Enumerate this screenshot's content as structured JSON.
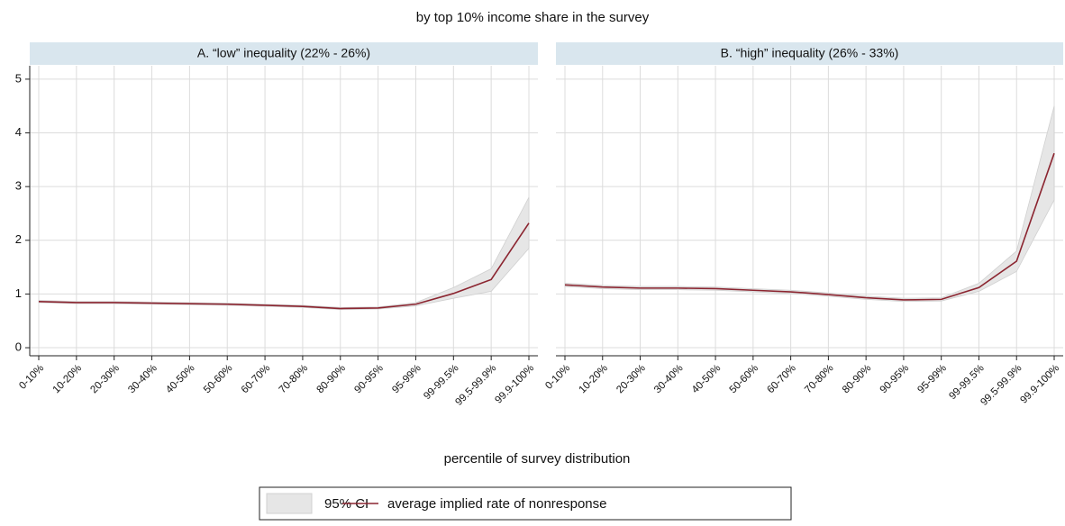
{
  "figure": {
    "title": "by top 10% income share in the survey",
    "x_label": "percentile of survey distribution"
  },
  "chart_data": [
    {
      "type": "line",
      "subtitle": "A. “low” inequality (22% - 26%)",
      "categories": [
        "0-10%",
        "10-20%",
        "20-30%",
        "30-40%",
        "40-50%",
        "50-60%",
        "60-70%",
        "70-80%",
        "80-90%",
        "90-95%",
        "95-99%",
        "99-99.5%",
        "99.5-99.9%",
        "99.9-100%"
      ],
      "series": [
        {
          "name": "95% CI",
          "color": "#e6e6e6",
          "lower": [
            0.84,
            0.82,
            0.82,
            0.81,
            0.8,
            0.79,
            0.77,
            0.75,
            0.71,
            0.72,
            0.78,
            0.92,
            1.05,
            1.85
          ],
          "upper": [
            0.88,
            0.86,
            0.86,
            0.85,
            0.84,
            0.83,
            0.81,
            0.79,
            0.75,
            0.76,
            0.84,
            1.12,
            1.47,
            2.8
          ]
        },
        {
          "name": "average implied rate of nonresponse",
          "color": "#8b2530",
          "values": [
            0.86,
            0.84,
            0.84,
            0.83,
            0.82,
            0.81,
            0.79,
            0.77,
            0.73,
            0.74,
            0.81,
            1.01,
            1.27,
            2.32
          ]
        }
      ],
      "ylim": [
        -0.15,
        5.25
      ],
      "yticks": [
        0,
        1,
        2,
        3,
        4,
        5
      ],
      "grid": true
    },
    {
      "type": "line",
      "subtitle": "B. “high” inequality (26% - 33%)",
      "categories": [
        "0-10%",
        "10-20%",
        "20-30%",
        "30-40%",
        "40-50%",
        "50-60%",
        "60-70%",
        "70-80%",
        "80-90%",
        "90-95%",
        "95-99%",
        "99-99.5%",
        "99.5-99.9%",
        "99.9-100%"
      ],
      "series": [
        {
          "name": "95% CI",
          "color": "#e6e6e6",
          "lower": [
            1.14,
            1.1,
            1.08,
            1.08,
            1.07,
            1.04,
            1.01,
            0.96,
            0.9,
            0.86,
            0.87,
            1.05,
            1.42,
            2.75
          ],
          "upper": [
            1.2,
            1.16,
            1.14,
            1.14,
            1.13,
            1.1,
            1.07,
            1.02,
            0.96,
            0.92,
            0.93,
            1.2,
            1.8,
            4.5
          ]
        },
        {
          "name": "average implied rate of nonresponse",
          "color": "#8b2530",
          "values": [
            1.17,
            1.13,
            1.11,
            1.11,
            1.1,
            1.07,
            1.04,
            0.99,
            0.93,
            0.89,
            0.9,
            1.12,
            1.61,
            3.62
          ]
        }
      ],
      "ylim": [
        -0.15,
        5.25
      ],
      "yticks": [
        0,
        1,
        2,
        3,
        4,
        5
      ],
      "grid": true
    }
  ]
}
